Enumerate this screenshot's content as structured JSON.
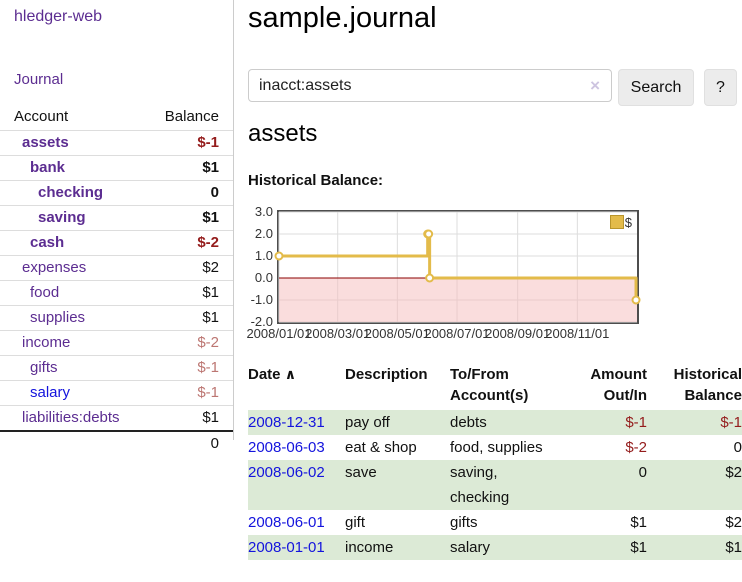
{
  "app": {
    "title": "hledger-web"
  },
  "sidebar": {
    "nav": [
      {
        "label": "Journal"
      }
    ],
    "accounts_table": {
      "account_header": "Account",
      "balance_header": "Balance",
      "rows": [
        {
          "name": "assets",
          "depth": 1,
          "balance": "$-1",
          "bold": true,
          "balance_color": "negative"
        },
        {
          "name": "bank",
          "depth": 2,
          "balance": "$1",
          "bold": true,
          "balance_color": "normal"
        },
        {
          "name": "checking",
          "depth": 3,
          "balance": "0",
          "bold": true,
          "balance_color": "normal"
        },
        {
          "name": "saving",
          "depth": 3,
          "balance": "$1",
          "bold": true,
          "balance_color": "normal"
        },
        {
          "name": "cash",
          "depth": 2,
          "balance": "$-2",
          "bold": true,
          "balance_color": "negative"
        },
        {
          "name": "expenses",
          "depth": 1,
          "balance": "$2",
          "bold": false,
          "balance_color": "normal"
        },
        {
          "name": "food",
          "depth": 2,
          "balance": "$1",
          "bold": false,
          "balance_color": "normal"
        },
        {
          "name": "supplies",
          "depth": 2,
          "balance": "$1",
          "bold": false,
          "balance_color": "normal"
        },
        {
          "name": "income",
          "depth": 1,
          "balance": "$-2",
          "bold": false,
          "balance_color": "negative-muted"
        },
        {
          "name": "gifts",
          "depth": 2,
          "balance": "$-1",
          "bold": false,
          "balance_color": "negative-muted"
        },
        {
          "name": "salary",
          "depth": 2,
          "balance": "$-1",
          "bold": false,
          "balance_color": "negative-muted",
          "link_color": "blue"
        },
        {
          "name": "liabilities:debts",
          "depth": 1,
          "balance": "$1",
          "bold": false,
          "balance_color": "normal"
        }
      ],
      "total": "0"
    }
  },
  "header": {
    "title": "sample.journal"
  },
  "search": {
    "value": "inacct:assets",
    "clear_icon": "×",
    "button_label": "Search",
    "help_label": "?"
  },
  "register": {
    "heading": "assets",
    "chart_label": "Historical Balance:"
  },
  "chart_data": {
    "type": "line",
    "style": "step-after",
    "title": "Historical Balance",
    "series": [
      {
        "name": "$",
        "color": "#e3bb4a",
        "points": [
          [
            "2008-01-01",
            1
          ],
          [
            "2008-06-01",
            2
          ],
          [
            "2008-06-02",
            2
          ],
          [
            "2008-06-03",
            0
          ],
          [
            "2008-12-31",
            -1
          ]
        ]
      }
    ],
    "xlim": [
      "2008-01-01",
      "2009-01-01"
    ],
    "ylim": [
      -2,
      3
    ],
    "y_tick_labels": [
      "3.0",
      "2.0",
      "1.0",
      "0.0",
      "-1.0",
      "-2.0"
    ],
    "x_ticks": [
      "2008/01/01",
      "2008/03/01",
      "2008/05/01",
      "2008/07/01",
      "2008/09/01",
      "2008/11/01"
    ],
    "legend": "$",
    "legend_position": "top-right",
    "grid": true,
    "grid_color": "#ddd",
    "negative_region": {
      "from": 0,
      "to": -2,
      "color": "#f5bcbc"
    },
    "zero_line_color": "#8b0000"
  },
  "transactions": {
    "headers": {
      "date": "Date",
      "sort_icon": "∧",
      "description": "Description",
      "account": "To/From\nAccount(s)",
      "amount": "Amount\nOut/In",
      "balance": "Historical\nBalance"
    },
    "rows": [
      {
        "date": "2008-12-31",
        "description": "pay off",
        "to_from": "debts",
        "amount": "$-1",
        "amount_negative": true,
        "balance": "$-1",
        "balance_negative": true,
        "shaded": true
      },
      {
        "date": "2008-06-03",
        "description": "eat & shop",
        "to_from": "food, supplies",
        "amount": "$-2",
        "amount_negative": true,
        "balance": "0",
        "balance_negative": false,
        "shaded": false
      },
      {
        "date": "2008-06-02",
        "description": "save",
        "to_from": "saving,\nchecking",
        "amount": "0",
        "amount_negative": false,
        "balance": "$2",
        "balance_negative": false,
        "shaded": true
      },
      {
        "date": "2008-06-01",
        "description": "gift",
        "to_from": "gifts",
        "amount": "$1",
        "amount_negative": false,
        "balance": "$2",
        "balance_negative": false,
        "shaded": false
      },
      {
        "date": "2008-01-01",
        "description": "income",
        "to_from": "salary",
        "amount": "$1",
        "amount_negative": false,
        "balance": "$1",
        "balance_negative": false,
        "shaded": true
      }
    ]
  },
  "colors": {
    "accent_purple": "#5c2d91",
    "link_blue": "#1414dd",
    "negative": "#941c1c",
    "negative_muted": "#bc7672",
    "row_green": "#dcead6",
    "chart_gold": "#e3bb4a",
    "chart_pink": "#f5bcbc",
    "zero_line": "#8b0000"
  }
}
